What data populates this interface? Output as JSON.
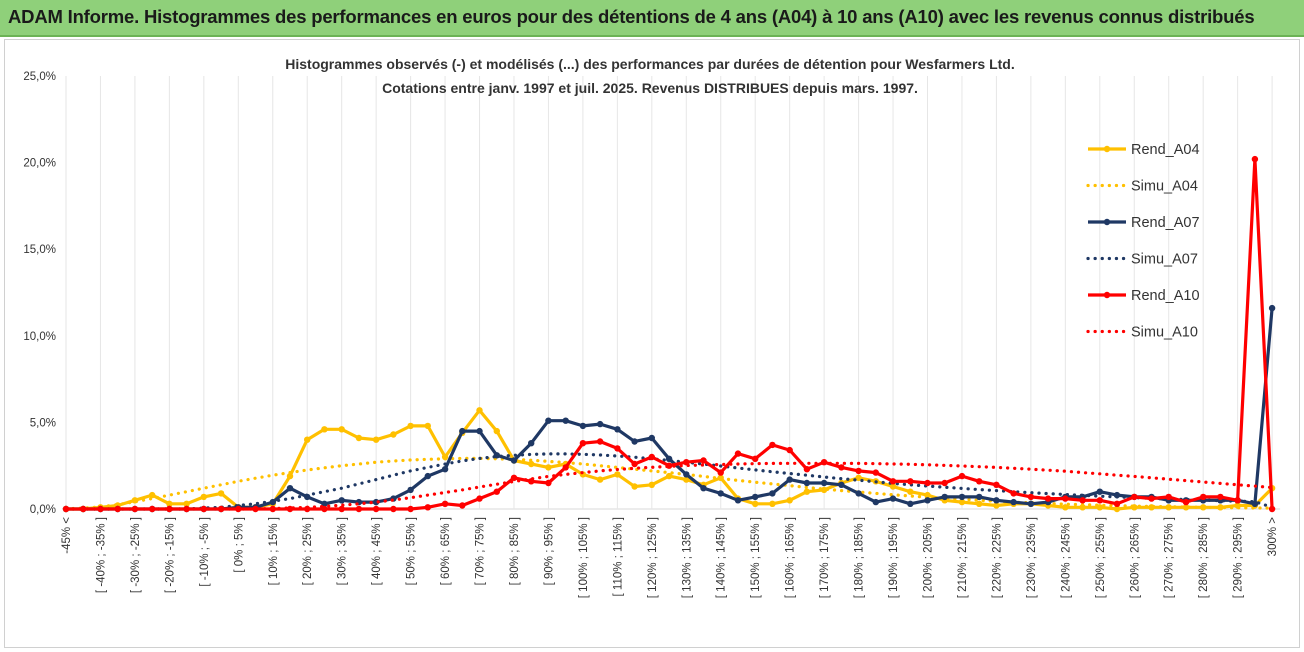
{
  "banner": {
    "title": "ADAM Informe. Histogrammes des performances en euros pour des détentions de 4 ans (A04) à 10 ans (A10) avec les revenus connus distribués"
  },
  "chart_data": {
    "type": "line",
    "title": "Histogrammes observés (-) et modélisés (...) des performances par durées de détention pour Wesfarmers Ltd.",
    "subtitle": "Cotations entre janv. 1997 et juil. 2025. Revenus DISTRIBUES depuis mars. 1997.",
    "yticks": [
      "0,0%",
      "5,0%",
      "10,0%",
      "15,0%",
      "20,0%",
      "25,0%"
    ],
    "ylim": [
      0,
      25
    ],
    "legend_position": "right",
    "x": [
      "-45% <",
      "[ -45% ; -40% ]",
      "[ -40% ; -35% ]",
      "[ -35% ; -30% ]",
      "[ -30% ; -25% ]",
      "[ -25% ; -20% ]",
      "[ -20% ; -15% ]",
      "[ -15% ; -10% ]",
      "[ -10% ; -5% ]",
      "[ -5% ; 0% ]",
      "[ 0% ; 5% ]",
      "[ 5% ; 10% ]",
      "[ 10% ; 15% ]",
      "[ 15% ; 20% ]",
      "[ 20% ; 25% ]",
      "[ 25% ; 30% ]",
      "[ 30% ; 35% ]",
      "[ 35% ; 40% ]",
      "[ 40% ; 45% ]",
      "[ 45% ; 50% ]",
      "[ 50% ; 55% ]",
      "[ 55% ; 60% ]",
      "[ 60% ; 65% ]",
      "[ 65% ; 70% ]",
      "[ 70% ; 75% ]",
      "[ 75% ; 80% ]",
      "[ 80% ; 85% ]",
      "[ 85% ; 90% ]",
      "[ 90% ; 95% ]",
      "[ 95% ; 100% ]",
      "[ 100% ; 105% ]",
      "[ 105% ; 110% ]",
      "[ 110% ; 115% ]",
      "[ 115% ; 120% ]",
      "[ 120% ; 125% ]",
      "[ 125% ; 130% ]",
      "[ 130% ; 135% ]",
      "[ 135% ; 140% ]",
      "[ 140% ; 145% ]",
      "[ 145% ; 150% ]",
      "[ 150% ; 155% ]",
      "[ 155% ; 160% ]",
      "[ 160% ; 165% ]",
      "[ 165% ; 170% ]",
      "[ 170% ; 175% ]",
      "[ 175% ; 180% ]",
      "[ 180% ; 185% ]",
      "[ 185% ; 190% ]",
      "[ 190% ; 195% ]",
      "[ 195% ; 200% ]",
      "[ 200% ; 205% ]",
      "[ 205% ; 210% ]",
      "[ 210% ; 215% ]",
      "[ 215% ; 220% ]",
      "[ 220% ; 225% ]",
      "[ 225% ; 230% ]",
      "[ 230% ; 235% ]",
      "[ 235% ; 240% ]",
      "[ 240% ; 245% ]",
      "[ 245% ; 250% ]",
      "[ 250% ; 255% ]",
      "[ 255% ; 260% ]",
      "[ 260% ; 265% ]",
      "[ 265% ; 270% ]",
      "[ 270% ; 275% ]",
      "[ 275% ; 280% ]",
      "[ 280% ; 285% ]",
      "[ 285% ; 290% ]",
      "[ 290% ; 295% ]",
      "[ 295% ; 300% ]",
      "300% >"
    ],
    "x_label_every": 2,
    "series": [
      {
        "name": "Rend_A04",
        "style": "solid",
        "color": "#ffc000",
        "values": [
          0,
          0,
          0.1,
          0.2,
          0.5,
          0.8,
          0.3,
          0.3,
          0.7,
          0.9,
          0.1,
          0.1,
          0.3,
          1.9,
          4.0,
          4.6,
          4.6,
          4.1,
          4.0,
          4.3,
          4.8,
          4.8,
          3.0,
          4.4,
          5.7,
          4.5,
          2.8,
          2.6,
          2.4,
          2.6,
          2.0,
          1.7,
          2.0,
          1.3,
          1.4,
          1.9,
          1.7,
          1.4,
          1.8,
          0.6,
          0.3,
          0.3,
          0.5,
          1.0,
          1.1,
          1.5,
          1.8,
          1.6,
          1.3,
          1.0,
          0.8,
          0.5,
          0.4,
          0.3,
          0.2,
          0.3,
          0.3,
          0.2,
          0.1,
          0.1,
          0.1,
          0,
          0.1,
          0.1,
          0.1,
          0.1,
          0.1,
          0.1,
          0.2,
          0.2,
          1.2
        ]
      },
      {
        "name": "Simu_A04",
        "style": "dotted",
        "color": "#ffc000",
        "values": [
          0.02,
          0.05,
          0.12,
          0.25,
          0.42,
          0.6,
          0.8,
          1.0,
          1.2,
          1.4,
          1.6,
          1.78,
          1.95,
          2.1,
          2.25,
          2.38,
          2.5,
          2.6,
          2.7,
          2.77,
          2.83,
          2.87,
          2.9,
          2.92,
          2.92,
          2.9,
          2.87,
          2.82,
          2.75,
          2.68,
          2.6,
          2.5,
          2.4,
          2.3,
          2.2,
          2.1,
          2.0,
          1.88,
          1.76,
          1.65,
          1.55,
          1.45,
          1.35,
          1.25,
          1.15,
          1.06,
          0.98,
          0.9,
          0.82,
          0.75,
          0.68,
          0.62,
          0.56,
          0.5,
          0.45,
          0.4,
          0.36,
          0.32,
          0.28,
          0.25,
          0.22,
          0.19,
          0.17,
          0.15,
          0.13,
          0.11,
          0.1,
          0.08,
          0.07,
          0.06,
          0.05
        ]
      },
      {
        "name": "Rend_A07",
        "style": "solid",
        "color": "#1f3864",
        "values": [
          0,
          0,
          0,
          0,
          0,
          0,
          0,
          0,
          0,
          0,
          0.1,
          0.1,
          0.4,
          1.2,
          0.7,
          0.3,
          0.5,
          0.4,
          0.4,
          0.6,
          1.1,
          1.9,
          2.3,
          4.5,
          4.5,
          3.1,
          2.8,
          3.8,
          5.1,
          5.1,
          4.8,
          4.9,
          4.6,
          3.9,
          4.1,
          2.9,
          2.0,
          1.2,
          0.9,
          0.5,
          0.7,
          0.9,
          1.7,
          1.5,
          1.5,
          1.4,
          0.9,
          0.4,
          0.6,
          0.3,
          0.5,
          0.7,
          0.7,
          0.7,
          0.5,
          0.4,
          0.3,
          0.4,
          0.7,
          0.7,
          1.0,
          0.8,
          0.7,
          0.7,
          0.5,
          0.5,
          0.5,
          0.5,
          0.5,
          0.3,
          11.6
        ]
      },
      {
        "name": "Simu_A07",
        "style": "dotted",
        "color": "#1f3864",
        "values": [
          0,
          0,
          0,
          0,
          0,
          0,
          0,
          0,
          0.05,
          0.1,
          0.2,
          0.3,
          0.45,
          0.6,
          0.8,
          1.0,
          1.2,
          1.45,
          1.7,
          1.95,
          2.2,
          2.4,
          2.6,
          2.78,
          2.92,
          3.03,
          3.1,
          3.15,
          3.18,
          3.18,
          3.16,
          3.12,
          3.06,
          2.99,
          2.9,
          2.8,
          2.7,
          2.59,
          2.48,
          2.37,
          2.26,
          2.15,
          2.05,
          1.95,
          1.85,
          1.75,
          1.66,
          1.57,
          1.48,
          1.4,
          1.33,
          1.26,
          1.19,
          1.12,
          1.06,
          1.0,
          0.94,
          0.89,
          0.84,
          0.79,
          0.74,
          0.7,
          0.66,
          0.62,
          0.58,
          0.55,
          0.52,
          0.48,
          0.45,
          0.42,
          0.1
        ]
      },
      {
        "name": "Rend_A10",
        "style": "solid",
        "color": "#ff0000",
        "values": [
          0,
          0,
          0,
          0,
          0,
          0,
          0,
          0,
          0,
          0,
          0,
          0,
          0,
          0,
          0,
          0,
          0,
          0,
          0,
          0,
          0,
          0.1,
          0.3,
          0.2,
          0.6,
          1.0,
          1.8,
          1.6,
          1.5,
          2.4,
          3.8,
          3.9,
          3.5,
          2.6,
          3.0,
          2.5,
          2.7,
          2.8,
          2.1,
          3.2,
          2.9,
          3.7,
          3.4,
          2.3,
          2.7,
          2.4,
          2.2,
          2.1,
          1.6,
          1.6,
          1.5,
          1.5,
          1.9,
          1.6,
          1.4,
          0.9,
          0.7,
          0.6,
          0.6,
          0.5,
          0.5,
          0.3,
          0.7,
          0.6,
          0.7,
          0.4,
          0.7,
          0.7,
          0.5,
          20.2,
          0
        ]
      },
      {
        "name": "Simu_A10",
        "style": "dotted",
        "color": "#ff0000",
        "values": [
          0,
          0,
          0,
          0,
          0,
          0,
          0,
          0,
          0,
          0,
          0,
          0,
          0.03,
          0.06,
          0.1,
          0.15,
          0.22,
          0.3,
          0.4,
          0.52,
          0.65,
          0.8,
          0.95,
          1.1,
          1.27,
          1.43,
          1.59,
          1.74,
          1.88,
          2.0,
          2.1,
          2.2,
          2.28,
          2.35,
          2.41,
          2.46,
          2.51,
          2.54,
          2.57,
          2.6,
          2.62,
          2.63,
          2.64,
          2.64,
          2.64,
          2.64,
          2.63,
          2.62,
          2.6,
          2.58,
          2.55,
          2.52,
          2.48,
          2.44,
          2.4,
          2.35,
          2.3,
          2.24,
          2.18,
          2.1,
          2.03,
          1.95,
          1.88,
          1.8,
          1.72,
          1.64,
          1.56,
          1.48,
          1.4,
          1.32,
          1.24
        ]
      }
    ]
  }
}
